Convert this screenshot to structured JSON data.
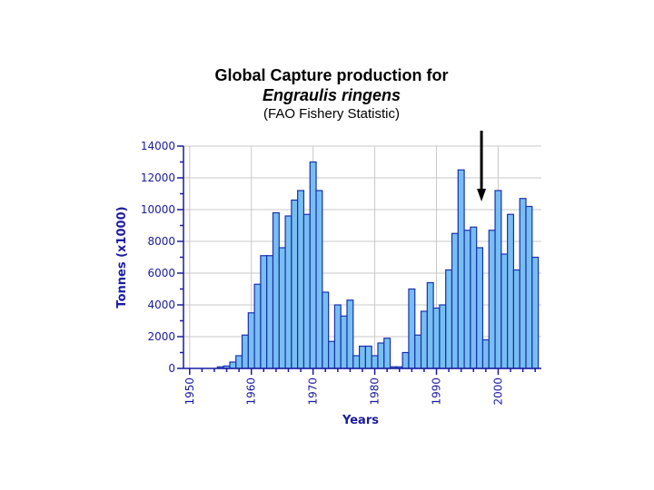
{
  "title": {
    "line1": "Global Capture production for",
    "line2": "Engraulis ringens",
    "line3": "(FAO Fishery Statistic)"
  },
  "colors": {
    "bar_fill": "#77bff0",
    "bar_stroke": "#1a2fb0",
    "grid": "#c9c9c9",
    "axis": "#1a1aa0",
    "arrow": "#000000"
  },
  "chart_data": {
    "type": "bar",
    "title": "Global Capture production for Engraulis ringens (FAO Fishery Statistic)",
    "xlabel": "Years",
    "ylabel": "Tonnes (x1000)",
    "ylim": [
      0,
      14000
    ],
    "yticks": [
      0,
      2000,
      4000,
      6000,
      8000,
      10000,
      12000,
      14000
    ],
    "xticks": [
      1950,
      1960,
      1970,
      1980,
      1990,
      2000
    ],
    "xlim": [
      1949,
      2007
    ],
    "grid": true,
    "annotation": {
      "type": "arrow",
      "points_to_year": 1997
    },
    "categories": [
      1950,
      1951,
      1952,
      1953,
      1954,
      1955,
      1956,
      1957,
      1958,
      1959,
      1960,
      1961,
      1962,
      1963,
      1964,
      1965,
      1966,
      1967,
      1968,
      1969,
      1970,
      1971,
      1972,
      1973,
      1974,
      1975,
      1976,
      1977,
      1978,
      1979,
      1980,
      1981,
      1982,
      1983,
      1984,
      1985,
      1986,
      1987,
      1988,
      1989,
      1990,
      1991,
      1992,
      1993,
      1994,
      1995,
      1996,
      1997,
      1998,
      1999,
      2000,
      2001,
      2002,
      2003,
      2004,
      2005,
      2006
    ],
    "values": [
      0,
      0,
      0,
      0,
      0,
      100,
      150,
      400,
      800,
      2100,
      3500,
      5300,
      7100,
      7100,
      9800,
      7600,
      9600,
      10600,
      11200,
      9700,
      13000,
      11200,
      4800,
      1700,
      4000,
      3300,
      4300,
      800,
      1400,
      1400,
      800,
      1600,
      1900,
      100,
      100,
      1000,
      5000,
      2100,
      3600,
      5400,
      3800,
      4000,
      6200,
      8500,
      12500,
      8700,
      8900,
      7600,
      1800,
      8700,
      11200,
      7200,
      9700,
      6200,
      10700,
      10200,
      7000
    ]
  }
}
